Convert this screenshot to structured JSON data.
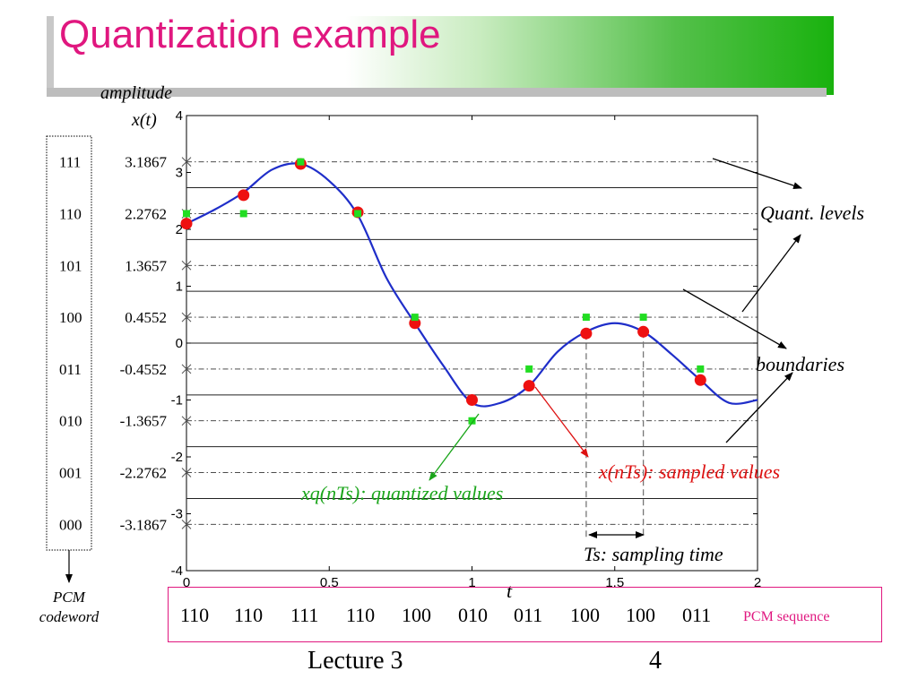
{
  "slide": {
    "title": "Quantization example",
    "footer_lecture": "Lecture 3",
    "footer_page": "4"
  },
  "colors": {
    "title": "#e0177f",
    "signal": "#1f2ec9",
    "sampled": "#ee1111",
    "quantized": "#22dd22",
    "annotation_quantized": "#1aa51a",
    "annotation_sampled": "#dd1111",
    "pcm_border": "#e0177f"
  },
  "annotations": {
    "y_name": "amplitude",
    "y_symbol": "x(t)",
    "x_symbol": "t",
    "quant_levels": "Quant. levels",
    "boundaries": "boundaries",
    "sampled_values": "x(nTs): sampled values",
    "quantized_values": "xq(nTs): quantized values",
    "sampling_time": "Ts: sampling time",
    "pcm_codeword": [
      "PCM",
      "codeword"
    ],
    "pcm_sequence_label": "PCM sequence"
  },
  "codebook": [
    {
      "code": "111",
      "level": "3.1867"
    },
    {
      "code": "110",
      "level": "2.2762"
    },
    {
      "code": "101",
      "level": "1.3657"
    },
    {
      "code": "100",
      "level": "0.4552"
    },
    {
      "code": "011",
      "level": "-0.4552"
    },
    {
      "code": "010",
      "level": "-1.3657"
    },
    {
      "code": "001",
      "level": "-2.2762"
    },
    {
      "code": "000",
      "level": "-3.1867"
    }
  ],
  "pcm_sequence": [
    "110",
    "110",
    "111",
    "110",
    "100",
    "010",
    "011",
    "100",
    "100",
    "011"
  ],
  "chart_data": {
    "type": "line",
    "xlim": [
      0,
      2
    ],
    "ylim": [
      -4,
      4
    ],
    "xticks": [
      "0",
      "0.5",
      "1",
      "1.5",
      "2"
    ],
    "yticks": [
      "-4",
      "-3",
      "-2",
      "-1",
      "0",
      "1",
      "2",
      "3",
      "4"
    ],
    "quantization_levels": [
      3.1867,
      2.2762,
      1.3657,
      0.4552,
      -0.4552,
      -1.3657,
      -2.2762,
      -3.1867
    ],
    "boundaries": [
      2.7314,
      1.821,
      0.9105,
      0,
      -0.9105,
      -1.821,
      -2.7314
    ],
    "signal": {
      "x": [
        0,
        0.1,
        0.2,
        0.3,
        0.4,
        0.5,
        0.6,
        0.7,
        0.8,
        0.9,
        1.0,
        1.1,
        1.2,
        1.3,
        1.4,
        1.5,
        1.6,
        1.7,
        1.8,
        1.9,
        2.0
      ],
      "y": [
        2.1,
        2.35,
        2.65,
        3.05,
        3.15,
        2.85,
        2.25,
        1.15,
        0.35,
        -0.4,
        -1.05,
        -1.05,
        -0.75,
        -0.15,
        0.2,
        0.35,
        0.2,
        -0.2,
        -0.65,
        -1.05,
        -1.0
      ]
    },
    "sampled": {
      "x": [
        0,
        0.2,
        0.4,
        0.6,
        0.8,
        1.0,
        1.2,
        1.4,
        1.6,
        1.8
      ],
      "y": [
        2.1,
        2.6,
        3.15,
        2.3,
        0.35,
        -1.0,
        -0.75,
        0.17,
        0.2,
        -0.65
      ]
    },
    "quantized": {
      "x": [
        0,
        0.2,
        0.4,
        0.6,
        0.8,
        1.0,
        1.2,
        1.4,
        1.6,
        1.8
      ],
      "y": [
        2.2762,
        2.2762,
        3.1867,
        2.2762,
        0.4552,
        -1.3657,
        -0.4552,
        0.4552,
        0.4552,
        -0.4552
      ]
    },
    "sampling_interval_marker": [
      1.4,
      1.6
    ]
  }
}
